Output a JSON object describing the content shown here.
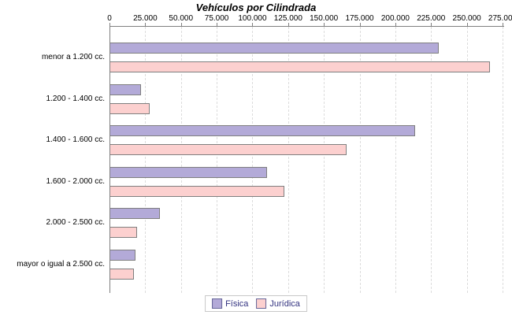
{
  "chart_data": {
    "type": "bar",
    "orientation": "horizontal",
    "title": "Vehículos por Cilindrada",
    "categories": [
      "menor a 1.200 cc.",
      "1.200 - 1.400 cc.",
      "1.400 - 1.600 cc.",
      "1.600 - 2.000 cc.",
      "2.000 - 2.500 cc.",
      "mayor o igual a 2.500 cc."
    ],
    "series": [
      {
        "name": "Física",
        "color": "#b3aad8",
        "values": [
          229000,
          21000,
          213000,
          109000,
          34000,
          17000
        ]
      },
      {
        "name": "Jurídica",
        "color": "#fcd0cf",
        "values": [
          265000,
          27000,
          165000,
          121000,
          18000,
          16000
        ]
      }
    ],
    "x_axis": {
      "position": "top",
      "min": 0,
      "max": 275000,
      "tick_interval": 25000,
      "tick_labels": [
        "0",
        "25.000",
        "50.000",
        "75.000",
        "100.000",
        "125.000",
        "150.000",
        "175.000",
        "200.000",
        "225.000",
        "250.000",
        "275.000"
      ]
    },
    "grid": true,
    "legend_position": "bottom"
  },
  "colors": {
    "bar_border": "#7f7f7f",
    "axis": "#808080",
    "gridline": "#dcdcdc",
    "legend_text": "#333380",
    "legend_border": "#c8c8c8",
    "text": "#000000",
    "background": "#ffffff"
  }
}
